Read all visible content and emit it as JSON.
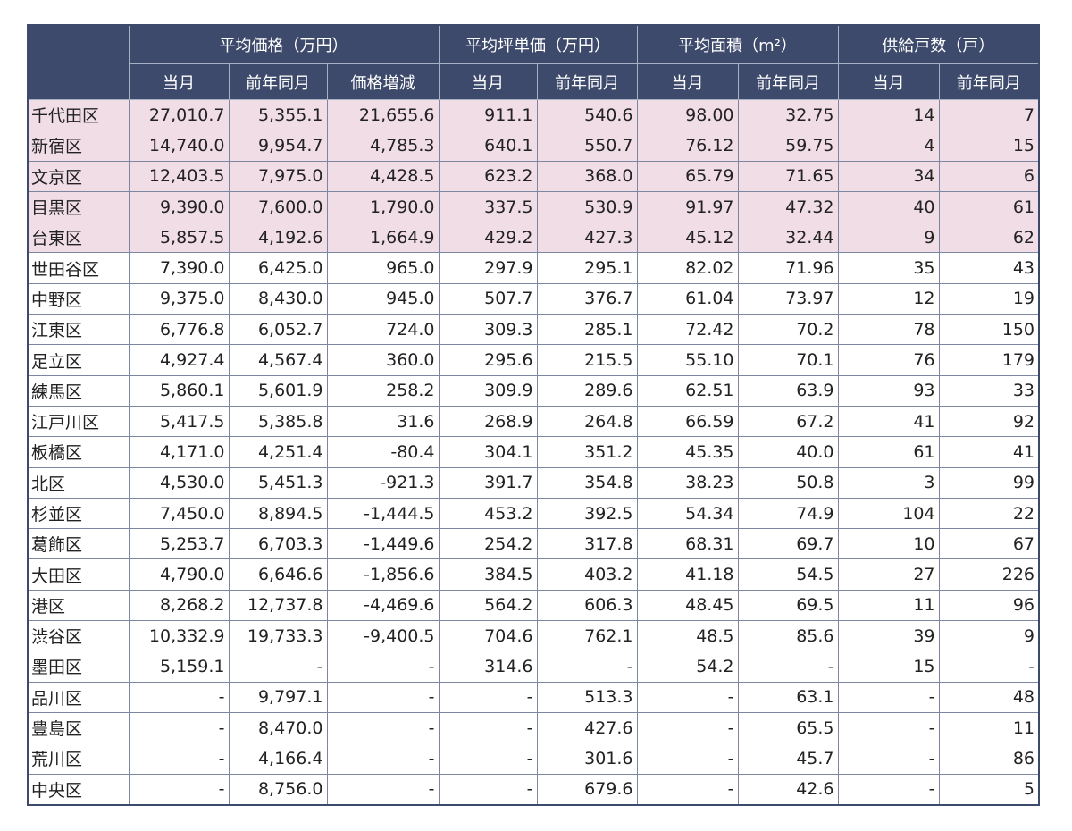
{
  "table": {
    "groups": [
      "平均価格（万円）",
      "平均坪単価（万円）",
      "平均面積（m²）",
      "供給戸数（戸）"
    ],
    "subheaders": [
      "当月",
      "前年同月",
      "価格増減",
      "当月",
      "前年同月",
      "当月",
      "前年同月",
      "当月",
      "前年同月"
    ],
    "rows": [
      [
        "千代田区",
        "27,010.7",
        "5,355.1",
        "21,655.6",
        "911.1",
        "540.6",
        "98.00",
        "32.75",
        "14",
        "7"
      ],
      [
        "新宿区",
        "14,740.0",
        "9,954.7",
        "4,785.3",
        "640.1",
        "550.7",
        "76.12",
        "59.75",
        "4",
        "15"
      ],
      [
        "文京区",
        "12,403.5",
        "7,975.0",
        "4,428.5",
        "623.2",
        "368.0",
        "65.79",
        "71.65",
        "34",
        "6"
      ],
      [
        "目黒区",
        "9,390.0",
        "7,600.0",
        "1,790.0",
        "337.5",
        "530.9",
        "91.97",
        "47.32",
        "40",
        "61"
      ],
      [
        "台東区",
        "5,857.5",
        "4,192.6",
        "1,664.9",
        "429.2",
        "427.3",
        "45.12",
        "32.44",
        "9",
        "62"
      ],
      [
        "世田谷区",
        "7,390.0",
        "6,425.0",
        "965.0",
        "297.9",
        "295.1",
        "82.02",
        "71.96",
        "35",
        "43"
      ],
      [
        "中野区",
        "9,375.0",
        "8,430.0",
        "945.0",
        "507.7",
        "376.7",
        "61.04",
        "73.97",
        "12",
        "19"
      ],
      [
        "江東区",
        "6,776.8",
        "6,052.7",
        "724.0",
        "309.3",
        "285.1",
        "72.42",
        "70.2",
        "78",
        "150"
      ],
      [
        "足立区",
        "4,927.4",
        "4,567.4",
        "360.0",
        "295.6",
        "215.5",
        "55.10",
        "70.1",
        "76",
        "179"
      ],
      [
        "練馬区",
        "5,860.1",
        "5,601.9",
        "258.2",
        "309.9",
        "289.6",
        "62.51",
        "63.9",
        "93",
        "33"
      ],
      [
        "江戸川区",
        "5,417.5",
        "5,385.8",
        "31.6",
        "268.9",
        "264.8",
        "66.59",
        "67.2",
        "41",
        "92"
      ],
      [
        "板橋区",
        "4,171.0",
        "4,251.4",
        "-80.4",
        "304.1",
        "351.2",
        "45.35",
        "40.0",
        "61",
        "41"
      ],
      [
        "北区",
        "4,530.0",
        "5,451.3",
        "-921.3",
        "391.7",
        "354.8",
        "38.23",
        "50.8",
        "3",
        "99"
      ],
      [
        "杉並区",
        "7,450.0",
        "8,894.5",
        "-1,444.5",
        "453.2",
        "392.5",
        "54.34",
        "74.9",
        "104",
        "22"
      ],
      [
        "葛飾区",
        "5,253.7",
        "6,703.3",
        "-1,449.6",
        "254.2",
        "317.8",
        "68.31",
        "69.7",
        "10",
        "67"
      ],
      [
        "大田区",
        "4,790.0",
        "6,646.6",
        "-1,856.6",
        "384.5",
        "403.2",
        "41.18",
        "54.5",
        "27",
        "226"
      ],
      [
        "港区",
        "8,268.2",
        "12,737.8",
        "-4,469.6",
        "564.2",
        "606.3",
        "48.45",
        "69.5",
        "11",
        "96"
      ],
      [
        "渋谷区",
        "10,332.9",
        "19,733.3",
        "-9,400.5",
        "704.6",
        "762.1",
        "48.5",
        "85.6",
        "39",
        "9"
      ],
      [
        "墨田区",
        "5,159.1",
        "-",
        "-",
        "314.6",
        "-",
        "54.2",
        "-",
        "15",
        "-"
      ],
      [
        "品川区",
        "-",
        "9,797.1",
        "-",
        "-",
        "513.3",
        "-",
        "63.1",
        "-",
        "48"
      ],
      [
        "豊島区",
        "-",
        "8,470.0",
        "-",
        "-",
        "427.6",
        "-",
        "65.5",
        "-",
        "11"
      ],
      [
        "荒川区",
        "-",
        "4,166.4",
        "-",
        "-",
        "301.6",
        "-",
        "45.7",
        "-",
        "86"
      ],
      [
        "中央区",
        "-",
        "8,756.0",
        "-",
        "-",
        "679.6",
        "-",
        "42.6",
        "-",
        "5"
      ]
    ]
  }
}
